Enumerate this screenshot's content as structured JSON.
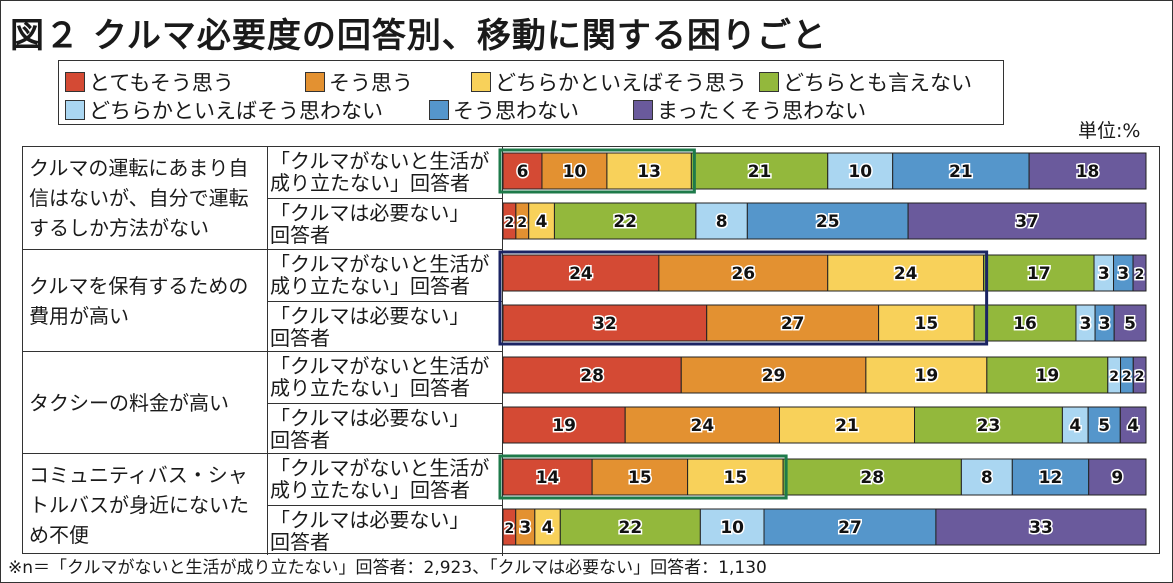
{
  "header": {
    "title": "図２ クルマ必要度の回答別、移動に関する困りごと",
    "unit": "単位:%"
  },
  "footer": {
    "note": "※n＝「クルマがないと生活が成り立たない」回答者：2,923、「クルマは必要ない」回答者：1,130"
  },
  "chart_data": {
    "type": "bar",
    "orientation": "horizontal",
    "stacked": true,
    "normalized": true,
    "title": "図２ クルマ必要度の回答別、移動に関する困りごと",
    "unit": "%",
    "xlim": [
      0,
      100
    ],
    "legend_position": "top",
    "legend": [
      {
        "name": "とてもそう思う",
        "color": "#d44a34"
      },
      {
        "name": "そう思う",
        "color": "#e39131"
      },
      {
        "name": "どちらかといえばそう思う",
        "color": "#f8d15a"
      },
      {
        "name": "どちらとも言えない",
        "color": "#93b83c"
      },
      {
        "name": "どちらかといえばそう思わない",
        "color": "#aad6f1"
      },
      {
        "name": "そう思わない",
        "color": "#5596cb"
      },
      {
        "name": "まったくそう思わない",
        "color": "#6a5a9c"
      }
    ],
    "groups": [
      {
        "category": "クルマの運転にあまり自信はないが、自分で運転するしか方法がない",
        "category_lines": [
          "クルマの運転にあまり自",
          "信はないが、自分で運転",
          "するしか方法がない"
        ],
        "rows": [
          {
            "respondent_lines": [
              "「クルマがないと生活が",
              "成り立たない」回答者"
            ],
            "values": [
              6,
              10,
              13,
              21,
              10,
              21,
              18
            ],
            "highlight": "green"
          },
          {
            "respondent_lines": [
              "「クルマは必要ない」",
              "回答者"
            ],
            "values": [
              2,
              2,
              4,
              22,
              8,
              25,
              37
            ],
            "highlight": null
          }
        ]
      },
      {
        "category": "クルマを保有するための費用が高い",
        "category_lines": [
          "クルマを保有するための",
          "費用が高い"
        ],
        "rows": [
          {
            "respondent_lines": [
              "「クルマがないと生活が",
              "成り立たない」回答者"
            ],
            "values": [
              24,
              26,
              24,
              17,
              3,
              3,
              2
            ],
            "highlight": "navy"
          },
          {
            "respondent_lines": [
              "「クルマは必要ない」",
              "回答者"
            ],
            "values": [
              32,
              27,
              15,
              16,
              3,
              3,
              5
            ],
            "highlight": "navy"
          }
        ]
      },
      {
        "category": "タクシーの料金が高い",
        "category_lines": [
          "タクシーの料金が高い"
        ],
        "rows": [
          {
            "respondent_lines": [
              "「クルマがないと生活が",
              "成り立たない」回答者"
            ],
            "values": [
              28,
              29,
              19,
              19,
              2,
              2,
              2
            ],
            "highlight": null
          },
          {
            "respondent_lines": [
              "「クルマは必要ない」",
              "回答者"
            ],
            "values": [
              19,
              24,
              21,
              23,
              4,
              5,
              4
            ],
            "highlight": null
          }
        ]
      },
      {
        "category": "コミュニティバス・シャトルバスが身近にないため不便",
        "category_lines": [
          "コミュニティバス・シャ",
          "トルバスが身近にないた",
          "め不便"
        ],
        "rows": [
          {
            "respondent_lines": [
              "「クルマがないと生活が",
              "成り立たない」回答者"
            ],
            "values": [
              14,
              15,
              15,
              28,
              8,
              12,
              9
            ],
            "highlight": "green"
          },
          {
            "respondent_lines": [
              "「クルマは必要ない」",
              "回答者"
            ],
            "values": [
              2,
              3,
              4,
              22,
              10,
              27,
              33
            ],
            "highlight": null
          }
        ]
      }
    ],
    "highlight_colors": {
      "green": "#1e7a4a",
      "navy": "#1b2463"
    }
  }
}
